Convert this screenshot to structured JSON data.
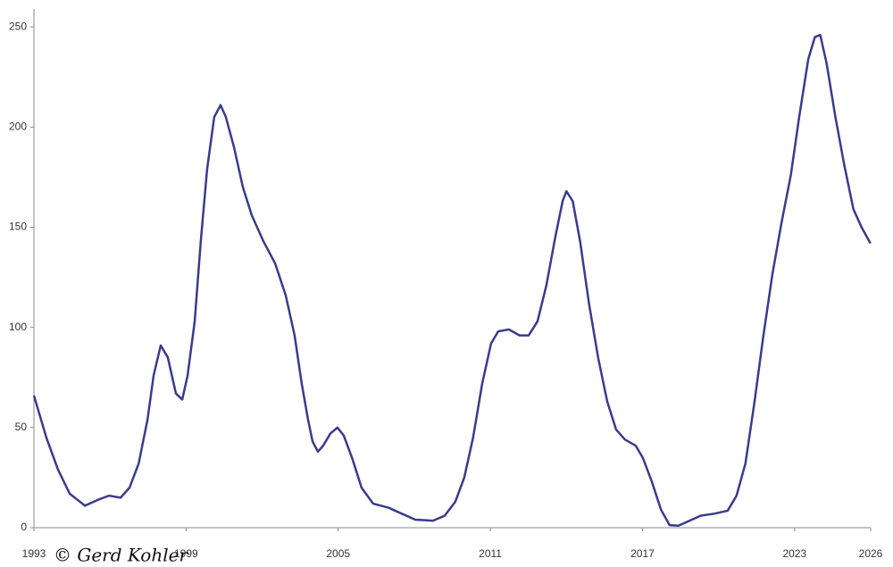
{
  "chart_data": {
    "type": "line",
    "watermark": "© Gerd Kohler",
    "x": [
      1993.0,
      1993.49,
      1993.95,
      1994.41,
      1995.01,
      1995.54,
      1995.96,
      1996.42,
      1996.77,
      1997.13,
      1997.48,
      1997.72,
      1998.0,
      1998.28,
      1998.6,
      1998.85,
      1999.06,
      1999.34,
      1999.58,
      1999.83,
      2000.11,
      2000.36,
      2000.57,
      2000.89,
      2001.24,
      2001.59,
      2002.05,
      2002.51,
      2002.93,
      2003.28,
      2003.56,
      2003.81,
      2003.99,
      2004.2,
      2004.41,
      2004.69,
      2004.97,
      2005.22,
      2005.57,
      2005.92,
      2006.38,
      2006.98,
      2007.51,
      2008.04,
      2008.74,
      2009.2,
      2009.62,
      2009.97,
      2010.32,
      2010.68,
      2011.03,
      2011.31,
      2011.73,
      2012.15,
      2012.51,
      2012.86,
      2013.21,
      2013.56,
      2013.85,
      2014.0,
      2014.25,
      2014.54,
      2014.89,
      2015.25,
      2015.61,
      2015.96,
      2016.31,
      2016.73,
      2017.01,
      2017.37,
      2017.73,
      2018.07,
      2018.42,
      2018.77,
      2019.3,
      2019.83,
      2020.36,
      2020.71,
      2021.06,
      2021.42,
      2021.77,
      2022.13,
      2022.48,
      2022.85,
      2023.18,
      2023.54,
      2023.8,
      2024.01,
      2024.26,
      2024.61,
      2024.96,
      2025.32,
      2025.64,
      2025.99
    ],
    "series": [
      {
        "color": "#3b3b8c",
        "values": [
          66,
          45,
          29,
          17,
          11,
          14,
          16,
          15,
          20,
          32,
          54,
          76,
          91,
          85,
          67,
          64,
          76,
          103,
          143,
          179,
          205,
          211,
          205,
          190,
          170,
          156,
          143,
          132,
          116,
          96,
          72,
          54,
          43,
          38,
          41,
          47,
          50,
          46,
          34,
          20,
          12,
          10,
          7,
          4,
          3.5,
          6,
          13,
          25,
          45,
          72,
          92,
          98,
          99,
          96,
          96,
          103,
          121,
          145,
          163,
          168,
          163,
          143,
          112,
          85,
          63,
          49,
          44,
          41,
          35,
          23,
          9,
          1.3,
          1,
          3,
          6,
          7,
          8.5,
          16,
          32,
          63,
          96,
          127,
          152,
          176,
          205,
          234,
          245,
          246,
          232,
          205,
          181,
          159,
          150,
          142
        ]
      }
    ],
    "xlim": [
      1993,
      2026
    ],
    "xticks": [
      1993,
      1999,
      2005,
      2011,
      2017,
      2023,
      2026
    ],
    "ylim": [
      0,
      259
    ],
    "yticks": [
      0,
      50,
      100,
      150,
      200,
      250
    ]
  }
}
